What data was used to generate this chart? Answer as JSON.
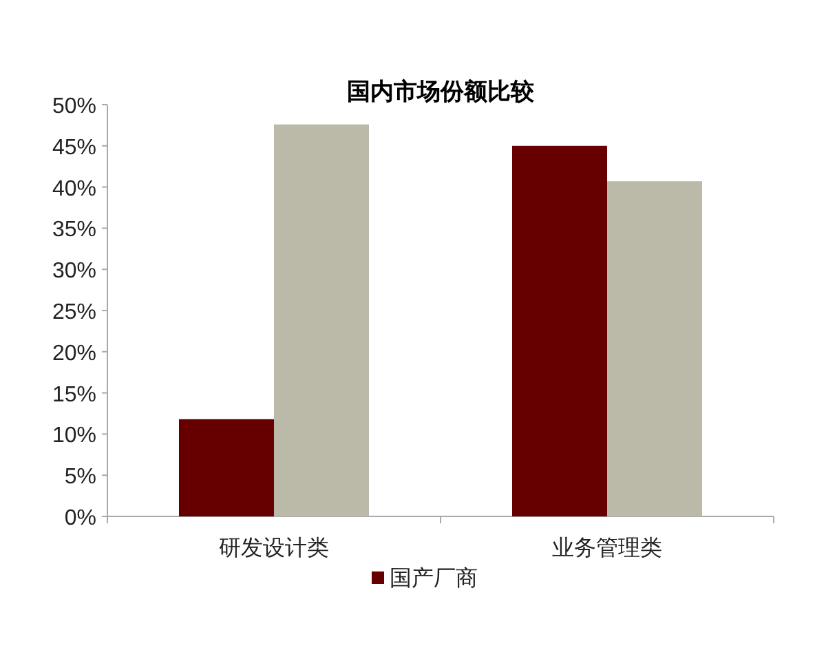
{
  "chart_data": {
    "type": "bar",
    "title": "国内市场份额比较",
    "categories": [
      "研发设计类",
      "业务管理类"
    ],
    "series": [
      {
        "name": "国产厂商",
        "color": "#660000",
        "values": [
          11.8,
          45
        ]
      },
      {
        "color": "#bbbaa8",
        "values": [
          47.6,
          40.7
        ]
      }
    ],
    "ylim": [
      0,
      50
    ],
    "yticks": [
      {
        "value": 0,
        "label": "0%"
      },
      {
        "value": 5,
        "label": "5%"
      },
      {
        "value": 10,
        "label": "10%"
      },
      {
        "value": 15,
        "label": "15%"
      },
      {
        "value": 20,
        "label": "20%"
      },
      {
        "value": 25,
        "label": "25%"
      },
      {
        "value": 30,
        "label": "30%"
      },
      {
        "value": 35,
        "label": "35%"
      },
      {
        "value": 40,
        "label": "40%"
      },
      {
        "value": 45,
        "label": "45%"
      },
      {
        "value": 50,
        "label": "50%"
      }
    ],
    "grid": false,
    "legend": "bottom"
  }
}
